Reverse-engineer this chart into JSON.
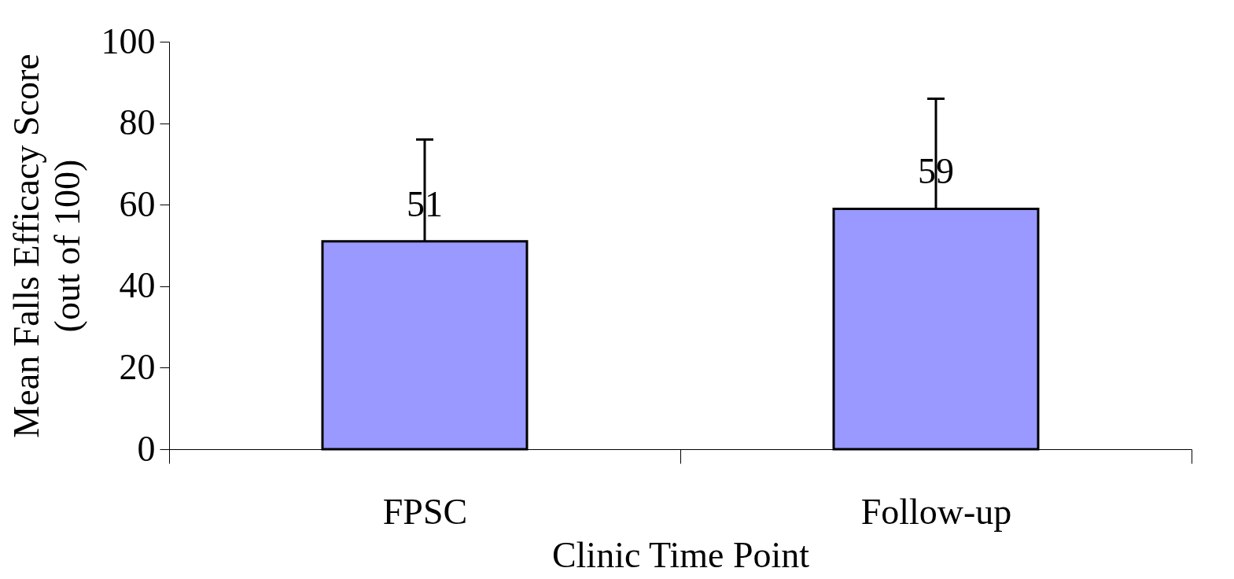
{
  "chart_data": {
    "type": "bar",
    "xlabel": "Clinic Time Point",
    "ylabel": "Mean Falls Efficacy Score\n(out of 100)",
    "categories": [
      "FPSC",
      "Follow-up"
    ],
    "values": [
      51,
      59
    ],
    "errors": [
      [
        51,
        76
      ],
      [
        59,
        86
      ]
    ],
    "color": "#9999ff",
    "ylim": [
      0,
      100
    ],
    "yticks": [
      0,
      20,
      40,
      60,
      80,
      100
    ],
    "grid": false,
    "data_labels": true
  }
}
